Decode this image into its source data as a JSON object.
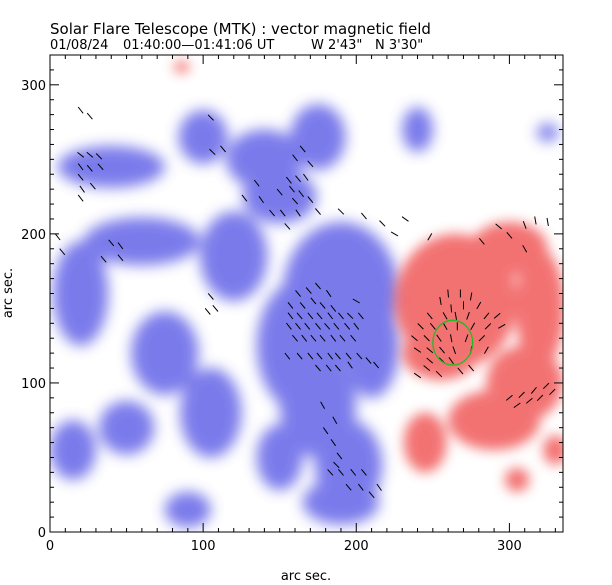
{
  "chart_data": {
    "type": "heatmap",
    "title": "Solar Flare Telescope (MTK) : vector magnetic field",
    "subtitle_parts": [
      "01/08/24",
      "01:40:00—01:41:06 UT",
      "W 2'43\"",
      "N 3'30\""
    ],
    "xlabel": "arc sec.",
    "ylabel": "arc sec.",
    "xlim": [
      0,
      335
    ],
    "ylim": [
      0,
      320
    ],
    "x_ticks": [
      0,
      100,
      200,
      300
    ],
    "y_ticks": [
      0,
      100,
      200,
      300
    ],
    "grid": false,
    "colors": {
      "negative_polarity": "#5a5ae6",
      "positive_polarity": "#f05050",
      "vectors": "#000000",
      "contour": "#22bb22",
      "background": "#ffffff"
    },
    "negative_regions": [
      {
        "x": 100,
        "y": 265,
        "rx": 16,
        "ry": 18
      },
      {
        "x": 140,
        "y": 250,
        "rx": 25,
        "ry": 20
      },
      {
        "x": 175,
        "y": 265,
        "rx": 18,
        "ry": 22
      },
      {
        "x": 150,
        "y": 225,
        "rx": 24,
        "ry": 18
      },
      {
        "x": 40,
        "y": 245,
        "rx": 35,
        "ry": 14
      },
      {
        "x": 60,
        "y": 195,
        "rx": 38,
        "ry": 16
      },
      {
        "x": 20,
        "y": 160,
        "rx": 18,
        "ry": 35
      },
      {
        "x": 120,
        "y": 185,
        "rx": 22,
        "ry": 30
      },
      {
        "x": 190,
        "y": 160,
        "rx": 38,
        "ry": 48
      },
      {
        "x": 165,
        "y": 125,
        "rx": 30,
        "ry": 45
      },
      {
        "x": 210,
        "y": 125,
        "rx": 18,
        "ry": 35
      },
      {
        "x": 75,
        "y": 120,
        "rx": 22,
        "ry": 28
      },
      {
        "x": 50,
        "y": 70,
        "rx": 18,
        "ry": 18
      },
      {
        "x": 105,
        "y": 80,
        "rx": 20,
        "ry": 30
      },
      {
        "x": 175,
        "y": 85,
        "rx": 25,
        "ry": 35
      },
      {
        "x": 195,
        "y": 45,
        "rx": 22,
        "ry": 30
      },
      {
        "x": 190,
        "y": 20,
        "rx": 25,
        "ry": 15
      },
      {
        "x": 15,
        "y": 55,
        "rx": 15,
        "ry": 20
      },
      {
        "x": 90,
        "y": 15,
        "rx": 15,
        "ry": 12
      },
      {
        "x": 240,
        "y": 270,
        "rx": 10,
        "ry": 15
      },
      {
        "x": 325,
        "y": 268,
        "rx": 7,
        "ry": 6
      },
      {
        "x": 150,
        "y": 50,
        "rx": 15,
        "ry": 22
      }
    ],
    "positive_regions": [
      {
        "x": 265,
        "y": 155,
        "rx": 40,
        "ry": 45
      },
      {
        "x": 255,
        "y": 120,
        "rx": 25,
        "ry": 18
      },
      {
        "x": 300,
        "y": 190,
        "rx": 25,
        "ry": 18
      },
      {
        "x": 320,
        "y": 150,
        "rx": 16,
        "ry": 40
      },
      {
        "x": 310,
        "y": 100,
        "rx": 25,
        "ry": 25
      },
      {
        "x": 290,
        "y": 75,
        "rx": 30,
        "ry": 20
      },
      {
        "x": 245,
        "y": 60,
        "rx": 14,
        "ry": 20
      },
      {
        "x": 305,
        "y": 35,
        "rx": 8,
        "ry": 8
      },
      {
        "x": 330,
        "y": 55,
        "rx": 8,
        "ry": 10
      },
      {
        "x": 86,
        "y": 312,
        "rx": 5,
        "ry": 4
      }
    ],
    "green_contour": {
      "x": 263,
      "y": 127,
      "rx": 13,
      "ry": 15
    },
    "vectors": [
      [
        20,
        283,
        128
      ],
      [
        26,
        279,
        130
      ],
      [
        20,
        253,
        142
      ],
      [
        26,
        253,
        140
      ],
      [
        32,
        252,
        135
      ],
      [
        20,
        245,
        127
      ],
      [
        26,
        244,
        130
      ],
      [
        33,
        245,
        132
      ],
      [
        20,
        238,
        130
      ],
      [
        21,
        230,
        125
      ],
      [
        28,
        232,
        130
      ],
      [
        20,
        224,
        128
      ],
      [
        5,
        198,
        128
      ],
      [
        8,
        188,
        130
      ],
      [
        40,
        194,
        130
      ],
      [
        46,
        192,
        128
      ],
      [
        35,
        183,
        130
      ],
      [
        46,
        184,
        130
      ],
      [
        105,
        278,
        135
      ],
      [
        106,
        255,
        135
      ],
      [
        113,
        257,
        130
      ],
      [
        135,
        234,
        128
      ],
      [
        138,
        223,
        125
      ],
      [
        127,
        224,
        128
      ],
      [
        150,
        228,
        130
      ],
      [
        158,
        230,
        130
      ],
      [
        164,
        227,
        128
      ],
      [
        162,
        237,
        130
      ],
      [
        156,
        236,
        128
      ],
      [
        167,
        238,
        126
      ],
      [
        170,
        247,
        132
      ],
      [
        160,
        251,
        128
      ],
      [
        165,
        257,
        130
      ],
      [
        145,
        214,
        130
      ],
      [
        152,
        214,
        128
      ],
      [
        162,
        214,
        125
      ],
      [
        160,
        222,
        132
      ],
      [
        170,
        223,
        130
      ],
      [
        175,
        215,
        130
      ],
      [
        155,
        205,
        132
      ],
      [
        190,
        215,
        135
      ],
      [
        205,
        212,
        130
      ],
      [
        217,
        207,
        135
      ],
      [
        225,
        200,
        150
      ],
      [
        232,
        210,
        145
      ],
      [
        248,
        198,
        60
      ],
      [
        282,
        195,
        130
      ],
      [
        293,
        205,
        140
      ],
      [
        310,
        206,
        110
      ],
      [
        317,
        209,
        100
      ],
      [
        325,
        208,
        100
      ],
      [
        300,
        199,
        130
      ],
      [
        310,
        190,
        120
      ],
      [
        105,
        158,
        130
      ],
      [
        108,
        150,
        130
      ],
      [
        103,
        148,
        130
      ],
      [
        162,
        160,
        130
      ],
      [
        169,
        162,
        130
      ],
      [
        175,
        165,
        130
      ],
      [
        182,
        160,
        125
      ],
      [
        157,
        152,
        128
      ],
      [
        165,
        152,
        130
      ],
      [
        172,
        155,
        128
      ],
      [
        178,
        152,
        130
      ],
      [
        185,
        150,
        128
      ],
      [
        200,
        155,
        150
      ],
      [
        157,
        145,
        128
      ],
      [
        163,
        145,
        130
      ],
      [
        170,
        145,
        130
      ],
      [
        176,
        145,
        130
      ],
      [
        183,
        145,
        128
      ],
      [
        190,
        145,
        130
      ],
      [
        196,
        145,
        135
      ],
      [
        203,
        145,
        130
      ],
      [
        156,
        138,
        128
      ],
      [
        162,
        138,
        130
      ],
      [
        168,
        138,
        130
      ],
      [
        175,
        138,
        130
      ],
      [
        181,
        138,
        132
      ],
      [
        187,
        138,
        130
      ],
      [
        194,
        138,
        130
      ],
      [
        200,
        138,
        128
      ],
      [
        160,
        130,
        130
      ],
      [
        166,
        130,
        128
      ],
      [
        172,
        130,
        130
      ],
      [
        178,
        130,
        130
      ],
      [
        185,
        130,
        128
      ],
      [
        191,
        130,
        130
      ],
      [
        198,
        130,
        130
      ],
      [
        155,
        118,
        128
      ],
      [
        163,
        118,
        130
      ],
      [
        170,
        118,
        130
      ],
      [
        176,
        118,
        130
      ],
      [
        183,
        118,
        128
      ],
      [
        188,
        118,
        130
      ],
      [
        195,
        118,
        130
      ],
      [
        202,
        118,
        132
      ],
      [
        208,
        115,
        130
      ],
      [
        175,
        110,
        130
      ],
      [
        182,
        110,
        128
      ],
      [
        188,
        110,
        130
      ],
      [
        196,
        112,
        125
      ],
      [
        213,
        112,
        130
      ],
      [
        178,
        85,
        120
      ],
      [
        186,
        75,
        120
      ],
      [
        180,
        68,
        125
      ],
      [
        185,
        60,
        125
      ],
      [
        189,
        51,
        128
      ],
      [
        187,
        45,
        135
      ],
      [
        183,
        40,
        132
      ],
      [
        190,
        40,
        130
      ],
      [
        198,
        40,
        128
      ],
      [
        205,
        40,
        130
      ],
      [
        195,
        30,
        130
      ],
      [
        203,
        30,
        128
      ],
      [
        215,
        30,
        125
      ],
      [
        210,
        25,
        130
      ],
      [
        260,
        160,
        95
      ],
      [
        268,
        160,
        90
      ],
      [
        275,
        158,
        80
      ],
      [
        255,
        155,
        100
      ],
      [
        262,
        150,
        95
      ],
      [
        270,
        152,
        90
      ],
      [
        280,
        152,
        60
      ],
      [
        248,
        145,
        130
      ],
      [
        258,
        145,
        120
      ],
      [
        265,
        145,
        100
      ],
      [
        273,
        145,
        70
      ],
      [
        285,
        145,
        50
      ],
      [
        292,
        145,
        40
      ],
      [
        242,
        138,
        135
      ],
      [
        250,
        138,
        130
      ],
      [
        258,
        138,
        120
      ],
      [
        266,
        138,
        90
      ],
      [
        276,
        138,
        60
      ],
      [
        286,
        138,
        45
      ],
      [
        295,
        138,
        30
      ],
      [
        238,
        130,
        140
      ],
      [
        246,
        130,
        135
      ],
      [
        254,
        130,
        125
      ],
      [
        262,
        130,
        100
      ],
      [
        272,
        130,
        70
      ],
      [
        282,
        130,
        45
      ],
      [
        240,
        122,
        145
      ],
      [
        248,
        122,
        140
      ],
      [
        256,
        122,
        130
      ],
      [
        264,
        122,
        110
      ],
      [
        275,
        122,
        80
      ],
      [
        285,
        122,
        60
      ],
      [
        248,
        115,
        140
      ],
      [
        256,
        115,
        135
      ],
      [
        262,
        115,
        125
      ],
      [
        240,
        105,
        145
      ],
      [
        246,
        110,
        140
      ],
      [
        254,
        106,
        135
      ],
      [
        268,
        108,
        130
      ],
      [
        275,
        110,
        130
      ],
      [
        300,
        90,
        40
      ],
      [
        308,
        92,
        45
      ],
      [
        316,
        95,
        50
      ],
      [
        324,
        98,
        45
      ],
      [
        305,
        85,
        35
      ],
      [
        313,
        88,
        40
      ],
      [
        320,
        90,
        45
      ],
      [
        328,
        94,
        45
      ]
    ]
  }
}
